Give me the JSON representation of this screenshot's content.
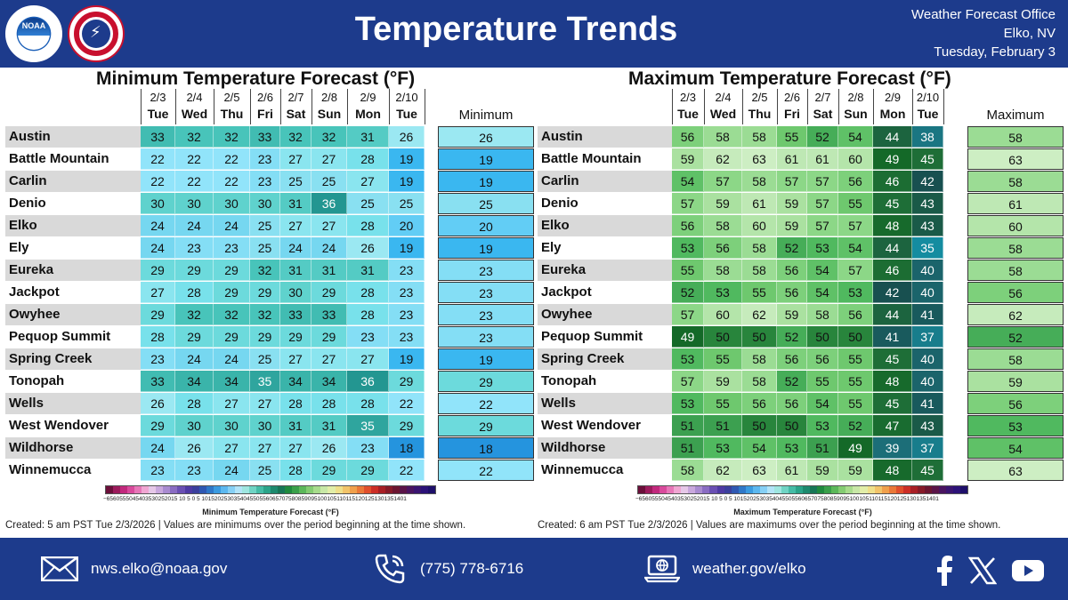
{
  "header": {
    "title": "Temperature Trends",
    "office_line1": "Weather Forecast Office",
    "office_line2": "Elko, NV",
    "office_line3": "Tuesday, February 3",
    "noaa_label": "NOAA"
  },
  "dates": [
    "2/3",
    "2/4",
    "2/5",
    "2/6",
    "2/7",
    "2/8",
    "2/9",
    "2/10"
  ],
  "days": [
    "Tue",
    "Wed",
    "Thu",
    "Fri",
    "Sat",
    "Sun",
    "Mon",
    "Tue"
  ],
  "locations": [
    "Austin",
    "Battle Mountain",
    "Carlin",
    "Denio",
    "Elko",
    "Ely",
    "Eureka",
    "Jackpot",
    "Owyhee",
    "Pequop Summit",
    "Spring Creek",
    "Tonopah",
    "Wells",
    "West Wendover",
    "Wildhorse",
    "Winnemucca"
  ],
  "min_panel": {
    "title": "Minimum Temperature Forecast (°F)",
    "summary_header": "Minimum",
    "values": [
      [
        33,
        32,
        32,
        33,
        32,
        32,
        31,
        26
      ],
      [
        22,
        22,
        22,
        23,
        27,
        27,
        28,
        19
      ],
      [
        22,
        22,
        22,
        23,
        25,
        25,
        27,
        19
      ],
      [
        30,
        30,
        30,
        30,
        31,
        36,
        25,
        25
      ],
      [
        24,
        24,
        24,
        25,
        27,
        27,
        28,
        20
      ],
      [
        24,
        23,
        23,
        25,
        24,
        24,
        26,
        19
      ],
      [
        29,
        29,
        29,
        32,
        31,
        31,
        31,
        23
      ],
      [
        27,
        28,
        29,
        29,
        30,
        29,
        28,
        23
      ],
      [
        29,
        32,
        32,
        32,
        33,
        33,
        28,
        23
      ],
      [
        28,
        29,
        29,
        29,
        29,
        29,
        23,
        23
      ],
      [
        23,
        24,
        24,
        25,
        27,
        27,
        27,
        19
      ],
      [
        33,
        34,
        34,
        35,
        34,
        34,
        36,
        29
      ],
      [
        26,
        28,
        27,
        27,
        28,
        28,
        28,
        22
      ],
      [
        29,
        30,
        30,
        30,
        31,
        31,
        35,
        29
      ],
      [
        24,
        26,
        27,
        27,
        27,
        26,
        23,
        18
      ],
      [
        23,
        23,
        24,
        25,
        28,
        29,
        29,
        22
      ]
    ],
    "summary": [
      26,
      19,
      19,
      25,
      20,
      19,
      23,
      23,
      23,
      23,
      19,
      29,
      22,
      29,
      18,
      22
    ],
    "colorbar_label": "Minimum Temperature Forecast (°F)",
    "created": "Created: 5 am PST Tue 2/3/2026  |  Values are minimums over the period beginning at the time shown."
  },
  "max_panel": {
    "title": "Maximum Temperature Forecast (°F)",
    "summary_header": "Maximum",
    "values": [
      [
        56,
        58,
        58,
        55,
        52,
        54,
        44,
        38
      ],
      [
        59,
        62,
        63,
        61,
        61,
        60,
        49,
        45
      ],
      [
        54,
        57,
        58,
        57,
        57,
        56,
        46,
        42
      ],
      [
        57,
        59,
        61,
        59,
        57,
        55,
        45,
        43
      ],
      [
        56,
        58,
        60,
        59,
        57,
        57,
        48,
        43
      ],
      [
        53,
        56,
        58,
        52,
        53,
        54,
        44,
        35
      ],
      [
        55,
        58,
        58,
        56,
        54,
        57,
        46,
        40
      ],
      [
        52,
        53,
        55,
        56,
        54,
        53,
        42,
        40
      ],
      [
        57,
        60,
        62,
        59,
        58,
        56,
        44,
        41
      ],
      [
        49,
        50,
        50,
        52,
        50,
        50,
        41,
        37
      ],
      [
        53,
        55,
        58,
        56,
        56,
        55,
        45,
        40
      ],
      [
        57,
        59,
        58,
        52,
        55,
        55,
        48,
        40
      ],
      [
        53,
        55,
        56,
        56,
        54,
        55,
        45,
        41
      ],
      [
        51,
        51,
        50,
        50,
        53,
        52,
        47,
        43
      ],
      [
        51,
        53,
        54,
        53,
        51,
        49,
        39,
        37
      ],
      [
        58,
        62,
        63,
        61,
        59,
        59,
        48,
        45
      ]
    ],
    "summary": [
      58,
      63,
      58,
      61,
      60,
      58,
      58,
      56,
      62,
      52,
      58,
      59,
      56,
      53,
      54,
      63
    ],
    "colorbar_label": "Maximum Temperature Forecast (°F)",
    "created": "Created: 6 am PST Tue 2/3/2026  |  Values are maximums over the period beginning at the time shown."
  },
  "colorbar_ticks": "−6560555045403530252015 10 5 0  5 1015202530354045505560657075808590951001051101151201251301351401",
  "footer": {
    "email": "nws.elko@noaa.gov",
    "phone": "(775) 778-6716",
    "website": "weather.gov/elko"
  },
  "icons": {
    "email": "envelope-icon",
    "phone": "phone-icon",
    "web": "laptop-globe-icon",
    "facebook": "facebook-icon",
    "x": "x-icon",
    "youtube": "youtube-icon"
  },
  "colors": {
    "header_bg": "#1d3b8c",
    "row_stripe": "#d9d9d9"
  }
}
